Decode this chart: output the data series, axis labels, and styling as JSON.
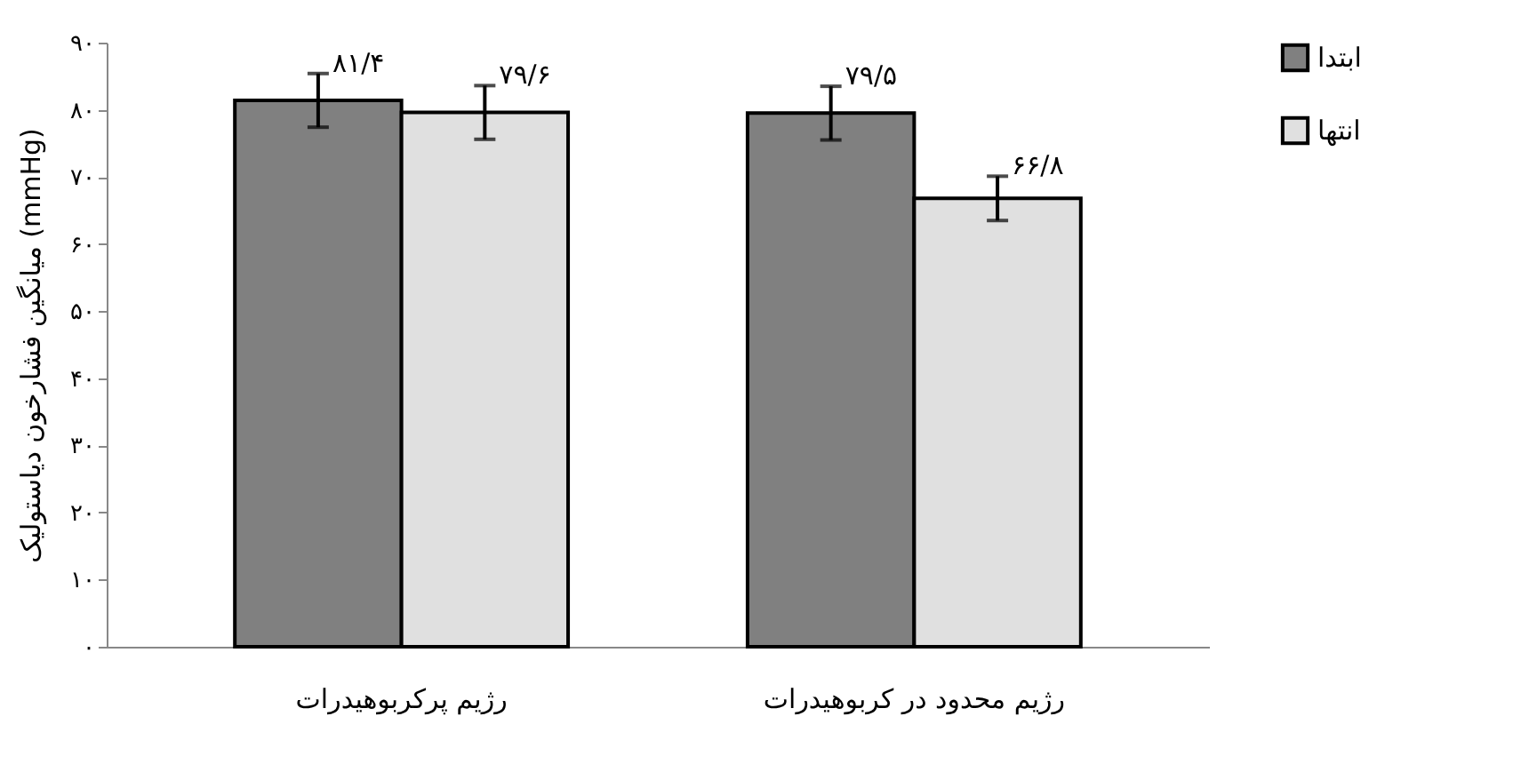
{
  "chart_data": {
    "type": "bar",
    "ylabel": "میانگین فشارخون دیاستولیک (mmHg)",
    "categories": [
      "رژیم پرکربوهیدرات",
      "رژیم محدود در کربوهیدرات"
    ],
    "series": [
      {
        "name": "ابتدا",
        "color": "#808080",
        "values": [
          81.4,
          79.5
        ],
        "errors": [
          4,
          4
        ],
        "value_labels": [
          "۸۱/۴",
          "۷۹/۵"
        ]
      },
      {
        "name": "انتها",
        "color": "#e0e0e0",
        "values": [
          79.6,
          66.8
        ],
        "errors": [
          4,
          3.3
        ],
        "value_labels": [
          "۷۹/۶",
          "۶۶/۸"
        ]
      }
    ],
    "ylim": [
      0,
      90
    ],
    "yticks": [
      {
        "value": 0,
        "label": "۰"
      },
      {
        "value": 10,
        "label": "۱۰"
      },
      {
        "value": 20,
        "label": "۲۰"
      },
      {
        "value": 30,
        "label": "۳۰"
      },
      {
        "value": 40,
        "label": "۴۰"
      },
      {
        "value": 50,
        "label": "۵۰"
      },
      {
        "value": 60,
        "label": "۶۰"
      },
      {
        "value": 70,
        "label": "۷۰"
      },
      {
        "value": 80,
        "label": "۸۰"
      },
      {
        "value": 90,
        "label": "۹۰"
      }
    ],
    "grid": false,
    "legend": "top right"
  }
}
